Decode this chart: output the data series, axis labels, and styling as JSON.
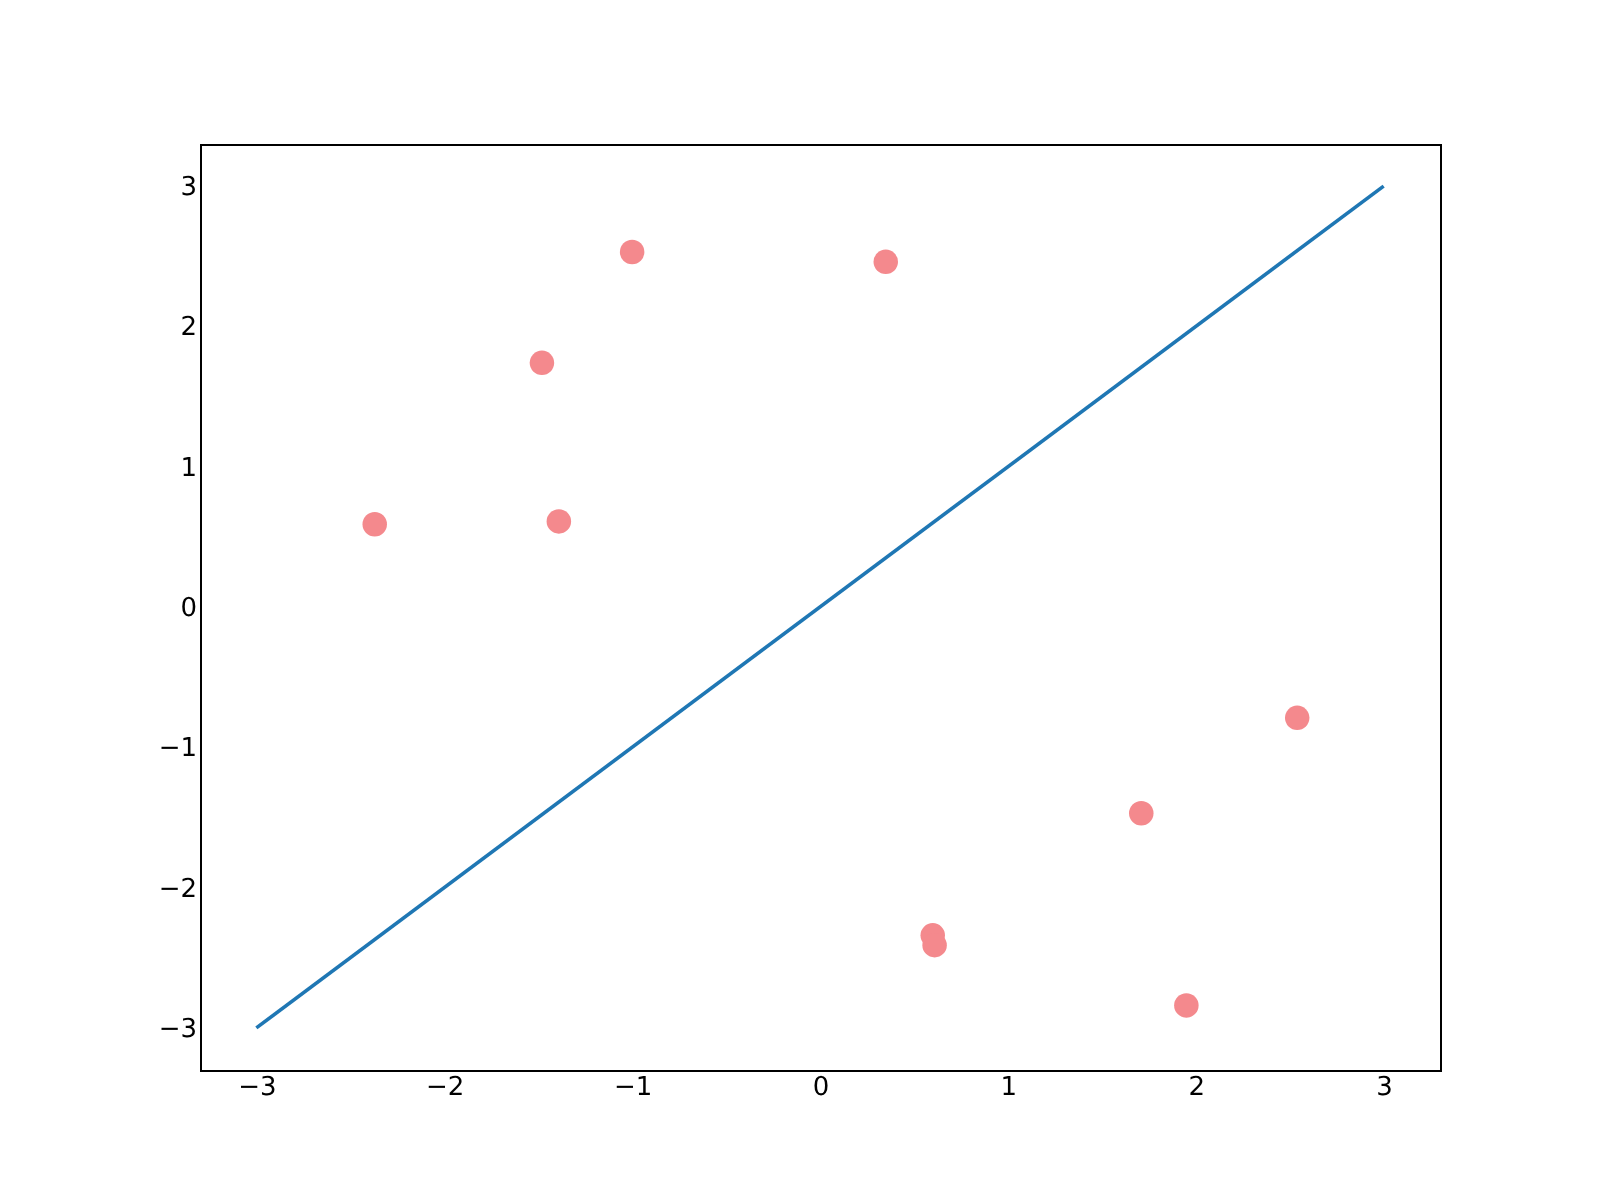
{
  "chart_data": {
    "type": "scatter",
    "xlim": [
      -3.3,
      3.3
    ],
    "ylim": [
      -3.3,
      3.3
    ],
    "xticks": [
      {
        "value": -3,
        "label": "−3"
      },
      {
        "value": -2,
        "label": "−2"
      },
      {
        "value": -1,
        "label": "−1"
      },
      0,
      1,
      2,
      3
    ],
    "yticks": [
      {
        "value": -3,
        "label": "−3"
      },
      {
        "value": -2,
        "label": "−2"
      },
      {
        "value": -1,
        "label": "−1"
      },
      0,
      1,
      2,
      3
    ],
    "grid": false,
    "series": [
      {
        "color": "#f4898d",
        "marker": "circle",
        "x": [
          -2.37,
          -1.39,
          -1.48,
          -1.0,
          0.35,
          2.54,
          1.71,
          0.6,
          0.61,
          1.95
        ],
        "values": [
          0.59,
          0.61,
          1.74,
          2.53,
          2.46,
          -0.79,
          -1.47,
          -2.34,
          -2.41,
          -2.84
        ]
      },
      {
        "type": "line",
        "color": "#1f77b4",
        "line_style": "solid",
        "x": [
          -3,
          3
        ],
        "values": [
          -3,
          3
        ]
      }
    ]
  }
}
